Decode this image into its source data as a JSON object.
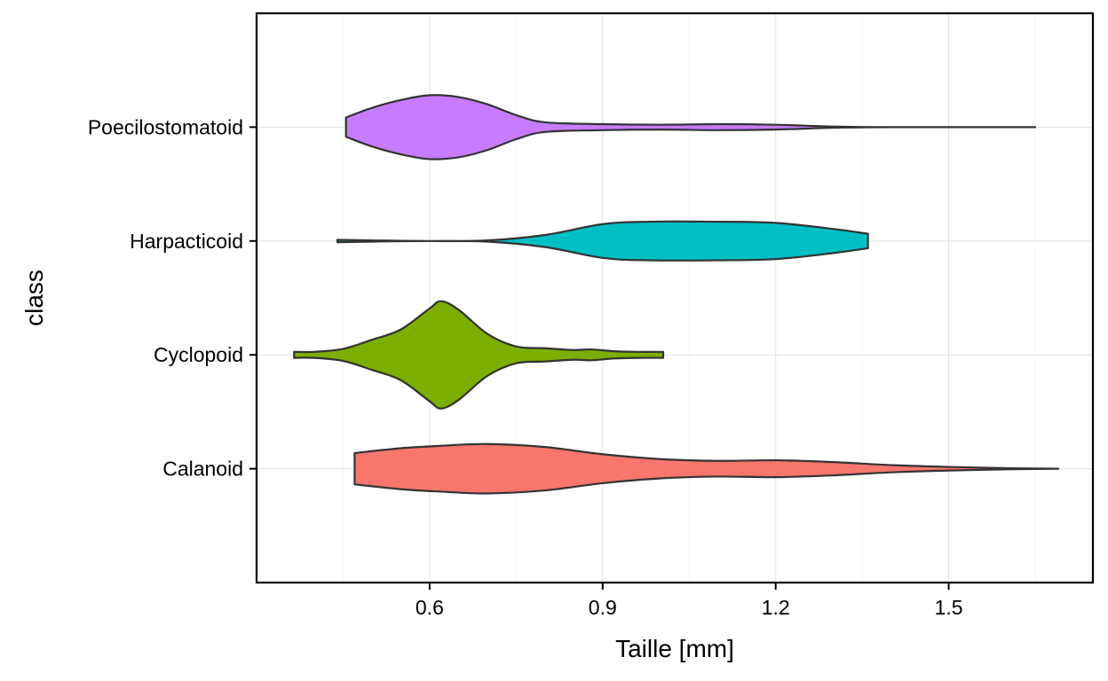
{
  "chart_data": {
    "type": "violin",
    "orientation": "horizontal",
    "xlabel": "Taille  [mm]",
    "ylabel": "class",
    "xlim": [
      0.3,
      1.75
    ],
    "x_ticks": [
      0.6,
      0.9,
      1.2,
      1.5
    ],
    "x_tick_labels": [
      "0.6",
      "0.9",
      "1.2",
      "1.5"
    ],
    "grid": true,
    "legend": "none",
    "categories": [
      "Calanoid",
      "Cyclopoid",
      "Harpacticoid",
      "Poecilostomatoid"
    ],
    "series": [
      {
        "category": "Calanoid",
        "color": "#F8766D",
        "min": 0.47,
        "max": 1.69,
        "profile": [
          [
            0.47,
            0.26
          ],
          [
            0.55,
            0.34
          ],
          [
            0.62,
            0.38
          ],
          [
            0.7,
            0.41
          ],
          [
            0.8,
            0.36
          ],
          [
            0.9,
            0.24
          ],
          [
            1.0,
            0.16
          ],
          [
            1.1,
            0.13
          ],
          [
            1.2,
            0.14
          ],
          [
            1.3,
            0.11
          ],
          [
            1.4,
            0.06
          ],
          [
            1.5,
            0.03
          ],
          [
            1.6,
            0.01
          ],
          [
            1.69,
            0.0
          ]
        ]
      },
      {
        "category": "Cyclopoid",
        "color": "#7CAE00",
        "min": 0.365,
        "max": 1.005,
        "profile": [
          [
            0.365,
            0.05
          ],
          [
            0.4,
            0.05
          ],
          [
            0.45,
            0.1
          ],
          [
            0.5,
            0.25
          ],
          [
            0.55,
            0.42
          ],
          [
            0.6,
            0.77
          ],
          [
            0.62,
            0.89
          ],
          [
            0.65,
            0.75
          ],
          [
            0.7,
            0.35
          ],
          [
            0.75,
            0.14
          ],
          [
            0.8,
            0.11
          ],
          [
            0.85,
            0.08
          ],
          [
            0.88,
            0.09
          ],
          [
            0.92,
            0.06
          ],
          [
            0.96,
            0.05
          ],
          [
            1.005,
            0.05
          ]
        ]
      },
      {
        "category": "Harpacticoid",
        "color": "#00BFC4",
        "min": 0.44,
        "max": 1.36,
        "profile": [
          [
            0.44,
            0.02
          ],
          [
            0.5,
            0.01
          ],
          [
            0.6,
            0.0
          ],
          [
            0.7,
            0.01
          ],
          [
            0.8,
            0.1
          ],
          [
            0.9,
            0.28
          ],
          [
            0.98,
            0.32
          ],
          [
            1.1,
            0.32
          ],
          [
            1.2,
            0.3
          ],
          [
            1.3,
            0.2
          ],
          [
            1.36,
            0.12
          ]
        ]
      },
      {
        "category": "Poecilostomatoid",
        "color": "#C77CFF",
        "min": 0.455,
        "max": 1.65,
        "profile": [
          [
            0.455,
            0.16
          ],
          [
            0.5,
            0.32
          ],
          [
            0.55,
            0.45
          ],
          [
            0.6,
            0.53
          ],
          [
            0.65,
            0.5
          ],
          [
            0.7,
            0.38
          ],
          [
            0.75,
            0.2
          ],
          [
            0.8,
            0.08
          ],
          [
            0.9,
            0.05
          ],
          [
            1.0,
            0.04
          ],
          [
            1.1,
            0.05
          ],
          [
            1.2,
            0.04
          ],
          [
            1.3,
            0.01
          ],
          [
            1.4,
            0.0
          ],
          [
            1.65,
            0.0
          ]
        ]
      }
    ]
  }
}
